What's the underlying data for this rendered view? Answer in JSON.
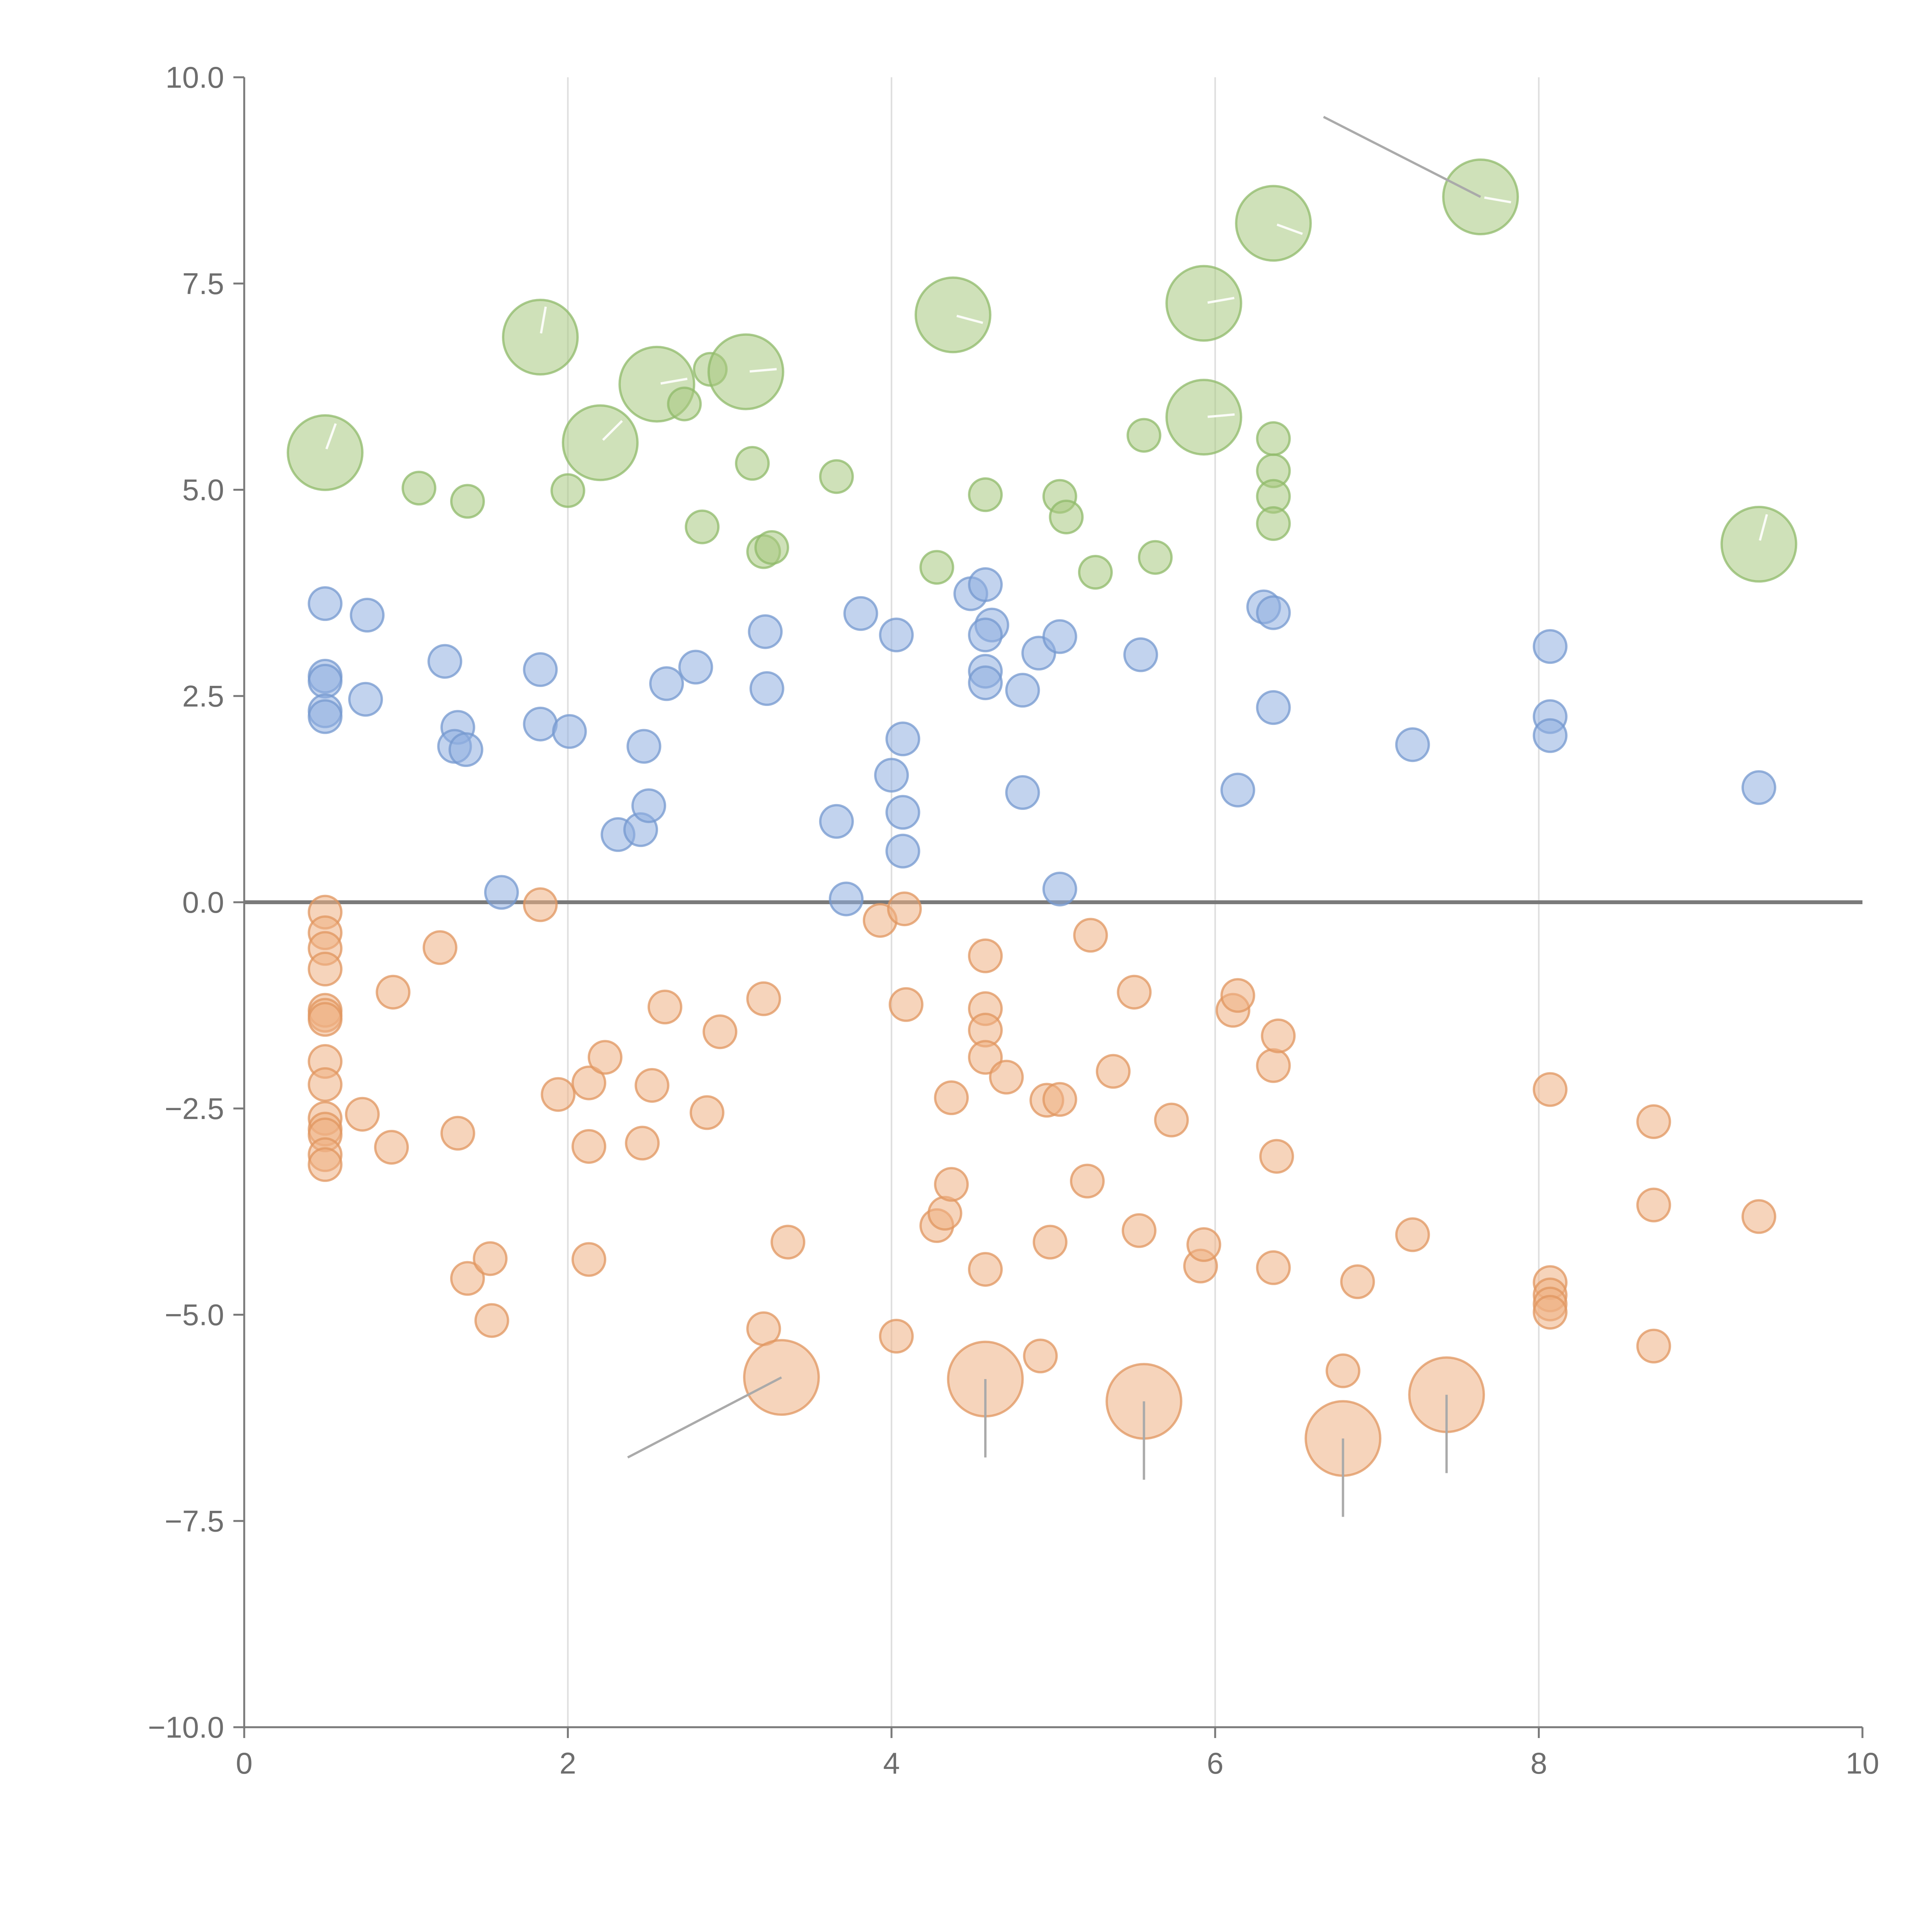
{
  "chart_data": {
    "type": "scatter",
    "subtype": "bubble",
    "title": "",
    "xlabel": "",
    "ylabel": "",
    "xlim": [
      0,
      10
    ],
    "ylim": [
      -10,
      10
    ],
    "x_ticks": [
      0,
      2,
      4,
      6,
      8,
      10
    ],
    "x_tick_labels": [
      "0",
      "2",
      "4",
      "6",
      "8",
      "10"
    ],
    "y_ticks": [
      10,
      7.5,
      5,
      2.5,
      0,
      -2.5,
      -5,
      -7.5,
      -10
    ],
    "y_tick_labels": [
      "10.0",
      "7.5",
      "5.0",
      "2.5",
      "0.0",
      "−2.5",
      "−5.0",
      "−7.5",
      "−10.0"
    ],
    "vertical_grid": [
      2,
      4,
      6,
      8
    ],
    "horizontal_reference_line": 0,
    "size_unit_note": "r is relative bubble size: 1 = small, 1.7 = large",
    "series": [
      {
        "name": "green",
        "color": "#a8c97f",
        "edge": "#8fb96a",
        "points": [
          {
            "x": 0.5,
            "y": 5.45,
            "r": 1.7
          },
          {
            "x": 1.08,
            "y": 5.02,
            "r": 1
          },
          {
            "x": 1.38,
            "y": 4.86,
            "r": 1
          },
          {
            "x": 1.83,
            "y": 6.85,
            "r": 1.7
          },
          {
            "x": 2.0,
            "y": 4.99,
            "r": 1
          },
          {
            "x": 2.2,
            "y": 5.57,
            "r": 1.7
          },
          {
            "x": 2.55,
            "y": 6.28,
            "r": 1.7
          },
          {
            "x": 2.72,
            "y": 6.04,
            "r": 1
          },
          {
            "x": 2.83,
            "y": 4.55,
            "r": 1
          },
          {
            "x": 2.88,
            "y": 6.46,
            "r": 1
          },
          {
            "x": 3.1,
            "y": 6.43,
            "r": 1.7
          },
          {
            "x": 3.14,
            "y": 5.32,
            "r": 1
          },
          {
            "x": 3.21,
            "y": 4.25,
            "r": 1
          },
          {
            "x": 3.26,
            "y": 4.3,
            "r": 1
          },
          {
            "x": 3.66,
            "y": 5.16,
            "r": 1
          },
          {
            "x": 4.28,
            "y": 4.06,
            "r": 1
          },
          {
            "x": 4.38,
            "y": 7.12,
            "r": 1.7
          },
          {
            "x": 4.58,
            "y": 4.94,
            "r": 1
          },
          {
            "x": 5.04,
            "y": 4.92,
            "r": 1
          },
          {
            "x": 5.08,
            "y": 4.67,
            "r": 1
          },
          {
            "x": 5.26,
            "y": 4.0,
            "r": 1
          },
          {
            "x": 5.56,
            "y": 5.66,
            "r": 1
          },
          {
            "x": 5.63,
            "y": 4.18,
            "r": 1
          },
          {
            "x": 5.93,
            "y": 7.26,
            "r": 1.7
          },
          {
            "x": 5.93,
            "y": 5.88,
            "r": 1.7
          },
          {
            "x": 6.36,
            "y": 8.23,
            "r": 1.7
          },
          {
            "x": 6.36,
            "y": 5.62,
            "r": 1
          },
          {
            "x": 6.36,
            "y": 5.23,
            "r": 1
          },
          {
            "x": 6.36,
            "y": 4.92,
            "r": 1
          },
          {
            "x": 6.36,
            "y": 4.59,
            "r": 1
          },
          {
            "x": 7.64,
            "y": 8.55,
            "r": 1.7
          },
          {
            "x": 9.36,
            "y": 4.34,
            "r": 1.7
          }
        ]
      },
      {
        "name": "blue",
        "color": "#8faee0",
        "edge": "#7498cf",
        "points": [
          {
            "x": 0.5,
            "y": 3.62,
            "r": 1
          },
          {
            "x": 0.5,
            "y": 2.74,
            "r": 1
          },
          {
            "x": 0.5,
            "y": 2.68,
            "r": 1
          },
          {
            "x": 0.5,
            "y": 2.32,
            "r": 1
          },
          {
            "x": 0.5,
            "y": 2.25,
            "r": 1
          },
          {
            "x": 0.76,
            "y": 3.48,
            "r": 1
          },
          {
            "x": 0.75,
            "y": 2.46,
            "r": 1
          },
          {
            "x": 1.24,
            "y": 2.92,
            "r": 1
          },
          {
            "x": 1.32,
            "y": 2.12,
            "r": 1
          },
          {
            "x": 1.3,
            "y": 1.89,
            "r": 1
          },
          {
            "x": 1.37,
            "y": 1.85,
            "r": 1
          },
          {
            "x": 1.59,
            "y": 0.12,
            "r": 1
          },
          {
            "x": 1.83,
            "y": 2.82,
            "r": 1
          },
          {
            "x": 1.83,
            "y": 2.16,
            "r": 1
          },
          {
            "x": 2.01,
            "y": 2.07,
            "r": 1
          },
          {
            "x": 2.47,
            "y": 1.89,
            "r": 1
          },
          {
            "x": 2.31,
            "y": 0.82,
            "r": 1
          },
          {
            "x": 2.45,
            "y": 0.88,
            "r": 1
          },
          {
            "x": 2.5,
            "y": 1.17,
            "r": 1
          },
          {
            "x": 2.61,
            "y": 2.65,
            "r": 1
          },
          {
            "x": 2.79,
            "y": 2.85,
            "r": 1
          },
          {
            "x": 3.22,
            "y": 3.28,
            "r": 1
          },
          {
            "x": 3.23,
            "y": 2.59,
            "r": 1
          },
          {
            "x": 3.66,
            "y": 0.98,
            "r": 1
          },
          {
            "x": 3.72,
            "y": 0.04,
            "r": 1
          },
          {
            "x": 3.81,
            "y": 3.5,
            "r": 1
          },
          {
            "x": 4.0,
            "y": 1.54,
            "r": 1
          },
          {
            "x": 4.03,
            "y": 3.24,
            "r": 1
          },
          {
            "x": 4.07,
            "y": 1.98,
            "r": 1
          },
          {
            "x": 4.07,
            "y": 1.09,
            "r": 1
          },
          {
            "x": 4.07,
            "y": 0.62,
            "r": 1
          },
          {
            "x": 4.49,
            "y": 3.74,
            "r": 1
          },
          {
            "x": 4.58,
            "y": 3.85,
            "r": 1
          },
          {
            "x": 4.62,
            "y": 3.36,
            "r": 1
          },
          {
            "x": 4.58,
            "y": 3.24,
            "r": 1
          },
          {
            "x": 4.58,
            "y": 2.8,
            "r": 1
          },
          {
            "x": 4.58,
            "y": 2.66,
            "r": 1
          },
          {
            "x": 4.81,
            "y": 2.57,
            "r": 1
          },
          {
            "x": 4.91,
            "y": 3.02,
            "r": 1
          },
          {
            "x": 4.81,
            "y": 1.33,
            "r": 1
          },
          {
            "x": 5.04,
            "y": 3.22,
            "r": 1
          },
          {
            "x": 5.04,
            "y": 0.16,
            "r": 1
          },
          {
            "x": 5.54,
            "y": 3.0,
            "r": 1
          },
          {
            "x": 6.14,
            "y": 1.36,
            "r": 1
          },
          {
            "x": 6.3,
            "y": 3.58,
            "r": 1
          },
          {
            "x": 6.36,
            "y": 3.51,
            "r": 1
          },
          {
            "x": 6.36,
            "y": 2.36,
            "r": 1
          },
          {
            "x": 7.22,
            "y": 1.91,
            "r": 1
          },
          {
            "x": 8.07,
            "y": 3.1,
            "r": 1
          },
          {
            "x": 8.07,
            "y": 2.25,
            "r": 1
          },
          {
            "x": 8.07,
            "y": 2.02,
            "r": 1
          },
          {
            "x": 9.36,
            "y": 1.39,
            "r": 1
          }
        ]
      },
      {
        "name": "orange",
        "color": "#eeb084",
        "edge": "#e0955f",
        "points": [
          {
            "x": 0.5,
            "y": -0.12,
            "r": 1
          },
          {
            "x": 0.5,
            "y": -0.37,
            "r": 1
          },
          {
            "x": 0.5,
            "y": -0.56,
            "r": 1
          },
          {
            "x": 0.5,
            "y": -0.81,
            "r": 1
          },
          {
            "x": 0.5,
            "y": -1.31,
            "r": 1
          },
          {
            "x": 0.5,
            "y": -1.37,
            "r": 1
          },
          {
            "x": 0.5,
            "y": -1.42,
            "r": 1
          },
          {
            "x": 0.5,
            "y": -1.93,
            "r": 1
          },
          {
            "x": 0.5,
            "y": -2.21,
            "r": 1
          },
          {
            "x": 0.5,
            "y": -2.62,
            "r": 1
          },
          {
            "x": 0.5,
            "y": -2.75,
            "r": 1
          },
          {
            "x": 0.5,
            "y": -2.82,
            "r": 1
          },
          {
            "x": 0.5,
            "y": -3.06,
            "r": 1
          },
          {
            "x": 0.5,
            "y": -3.18,
            "r": 1
          },
          {
            "x": 0.73,
            "y": -2.57,
            "r": 1
          },
          {
            "x": 0.91,
            "y": -2.97,
            "r": 1
          },
          {
            "x": 0.92,
            "y": -1.09,
            "r": 1
          },
          {
            "x": 1.21,
            "y": -0.55,
            "r": 1
          },
          {
            "x": 1.32,
            "y": -2.8,
            "r": 1
          },
          {
            "x": 1.38,
            "y": -4.56,
            "r": 1
          },
          {
            "x": 1.52,
            "y": -4.32,
            "r": 1
          },
          {
            "x": 1.53,
            "y": -5.07,
            "r": 1
          },
          {
            "x": 1.83,
            "y": -0.03,
            "r": 1
          },
          {
            "x": 1.94,
            "y": -2.33,
            "r": 1
          },
          {
            "x": 2.13,
            "y": -2.19,
            "r": 1
          },
          {
            "x": 2.13,
            "y": -2.96,
            "r": 1
          },
          {
            "x": 2.13,
            "y": -4.33,
            "r": 1
          },
          {
            "x": 2.23,
            "y": -1.88,
            "r": 1
          },
          {
            "x": 2.46,
            "y": -2.92,
            "r": 1
          },
          {
            "x": 2.52,
            "y": -2.22,
            "r": 1
          },
          {
            "x": 2.6,
            "y": -1.27,
            "r": 1
          },
          {
            "x": 2.86,
            "y": -2.55,
            "r": 1
          },
          {
            "x": 2.94,
            "y": -1.57,
            "r": 1
          },
          {
            "x": 3.21,
            "y": -1.17,
            "r": 1
          },
          {
            "x": 3.21,
            "y": -5.17,
            "r": 1
          },
          {
            "x": 3.36,
            "y": -4.12,
            "r": 1
          },
          {
            "x": 3.32,
            "y": -5.76,
            "r": 1.7
          },
          {
            "x": 3.93,
            "y": -0.22,
            "r": 1
          },
          {
            "x": 4.03,
            "y": -5.26,
            "r": 1
          },
          {
            "x": 4.08,
            "y": -0.08,
            "r": 1
          },
          {
            "x": 4.09,
            "y": -1.24,
            "r": 1
          },
          {
            "x": 4.28,
            "y": -3.92,
            "r": 1
          },
          {
            "x": 4.33,
            "y": -3.77,
            "r": 1
          },
          {
            "x": 4.37,
            "y": -2.37,
            "r": 1
          },
          {
            "x": 4.37,
            "y": -3.42,
            "r": 1
          },
          {
            "x": 4.58,
            "y": -0.65,
            "r": 1
          },
          {
            "x": 4.58,
            "y": -1.29,
            "r": 1
          },
          {
            "x": 4.58,
            "y": -1.55,
            "r": 1
          },
          {
            "x": 4.58,
            "y": -1.88,
            "r": 1
          },
          {
            "x": 4.58,
            "y": -4.45,
            "r": 1
          },
          {
            "x": 4.58,
            "y": -5.78,
            "r": 1.7
          },
          {
            "x": 4.71,
            "y": -2.12,
            "r": 1
          },
          {
            "x": 4.92,
            "y": -5.5,
            "r": 1
          },
          {
            "x": 4.96,
            "y": -2.4,
            "r": 1
          },
          {
            "x": 4.98,
            "y": -4.12,
            "r": 1
          },
          {
            "x": 5.04,
            "y": -2.39,
            "r": 1
          },
          {
            "x": 5.21,
            "y": -3.38,
            "r": 1
          },
          {
            "x": 5.23,
            "y": -0.4,
            "r": 1
          },
          {
            "x": 5.37,
            "y": -2.05,
            "r": 1
          },
          {
            "x": 5.5,
            "y": -1.09,
            "r": 1
          },
          {
            "x": 5.53,
            "y": -3.98,
            "r": 1
          },
          {
            "x": 5.56,
            "y": -6.05,
            "r": 1.7
          },
          {
            "x": 5.73,
            "y": -2.64,
            "r": 1
          },
          {
            "x": 5.91,
            "y": -4.41,
            "r": 1
          },
          {
            "x": 5.93,
            "y": -4.15,
            "r": 1
          },
          {
            "x": 6.11,
            "y": -1.31,
            "r": 1
          },
          {
            "x": 6.14,
            "y": -1.13,
            "r": 1
          },
          {
            "x": 6.36,
            "y": -1.98,
            "r": 1
          },
          {
            "x": 6.36,
            "y": -4.43,
            "r": 1
          },
          {
            "x": 6.39,
            "y": -1.62,
            "r": 1
          },
          {
            "x": 6.38,
            "y": -3.08,
            "r": 1
          },
          {
            "x": 6.79,
            "y": -5.68,
            "r": 1
          },
          {
            "x": 6.79,
            "y": -6.5,
            "r": 1.7
          },
          {
            "x": 6.88,
            "y": -4.6,
            "r": 1
          },
          {
            "x": 7.22,
            "y": -4.03,
            "r": 1
          },
          {
            "x": 7.43,
            "y": -5.97,
            "r": 1.7
          },
          {
            "x": 8.07,
            "y": -2.27,
            "r": 1
          },
          {
            "x": 8.07,
            "y": -4.61,
            "r": 1
          },
          {
            "x": 8.07,
            "y": -4.76,
            "r": 1
          },
          {
            "x": 8.07,
            "y": -4.87,
            "r": 1
          },
          {
            "x": 8.07,
            "y": -4.97,
            "r": 1
          },
          {
            "x": 8.71,
            "y": -2.66,
            "r": 1
          },
          {
            "x": 8.71,
            "y": -3.67,
            "r": 1
          },
          {
            "x": 8.71,
            "y": -5.38,
            "r": 1
          },
          {
            "x": 9.36,
            "y": -3.81,
            "r": 1
          }
        ]
      }
    ],
    "annotation_lines": [
      {
        "from": [
          7.64,
          8.55
        ],
        "to": [
          6.67,
          9.52
        ],
        "color": "#aaaaaa"
      },
      {
        "from": [
          3.32,
          -5.76
        ],
        "to": [
          2.37,
          -6.73
        ],
        "color": "#aaaaaa"
      },
      {
        "from": [
          4.58,
          -5.78
        ],
        "to": [
          4.58,
          -6.73
        ],
        "color": "#aaaaaa"
      },
      {
        "from": [
          5.56,
          -6.05
        ],
        "to": [
          5.56,
          -7.0
        ],
        "color": "#aaaaaa"
      },
      {
        "from": [
          6.79,
          -6.5
        ],
        "to": [
          6.79,
          -7.45
        ],
        "color": "#aaaaaa"
      },
      {
        "from": [
          7.43,
          -5.97
        ],
        "to": [
          7.43,
          -6.92
        ],
        "color": "#aaaaaa"
      }
    ]
  }
}
